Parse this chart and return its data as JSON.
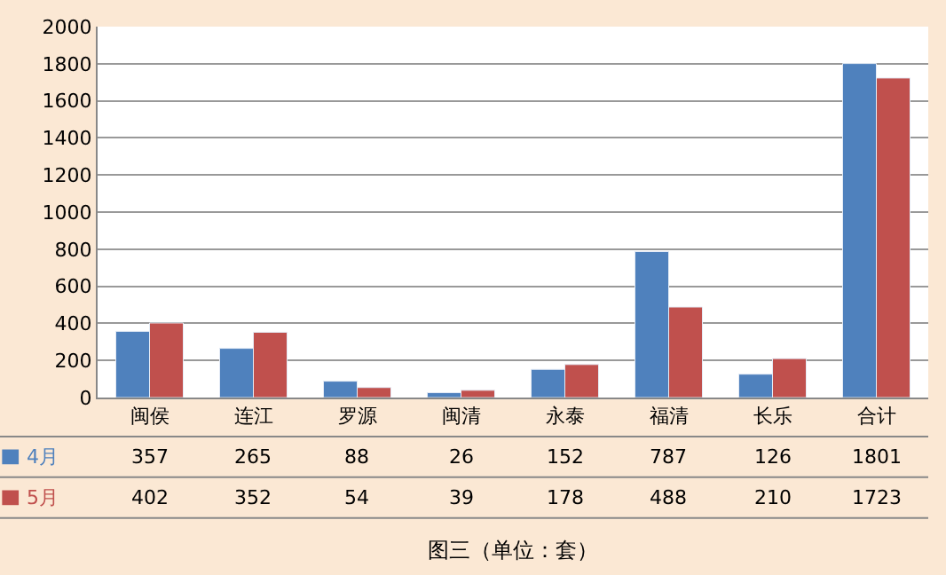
{
  "chart_data": {
    "type": "bar",
    "categories": [
      "闽侯",
      "连江",
      "罗源",
      "闽清",
      "永泰",
      "福清",
      "长乐",
      "合计"
    ],
    "series": [
      {
        "name": "4月",
        "color": "#4f81bd",
        "values": [
          357,
          265,
          88,
          26,
          152,
          787,
          126,
          1801
        ]
      },
      {
        "name": "5月",
        "color": "#c0504d",
        "values": [
          402,
          352,
          54,
          39,
          178,
          488,
          210,
          1723
        ]
      }
    ],
    "ylim": [
      0,
      2000
    ],
    "yticks": [
      0,
      200,
      400,
      600,
      800,
      1000,
      1200,
      1400,
      1600,
      1800,
      2000
    ],
    "grid": "y",
    "legend": "bottom left",
    "data_labels": true,
    "annotations": [
      "图三（单位：套）"
    ]
  }
}
